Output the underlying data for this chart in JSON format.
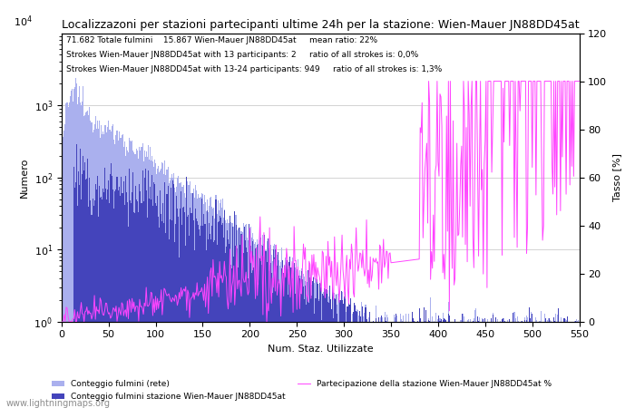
{
  "title": "Localizzazoni per stazioni partecipanti ultime 24h per la stazione: Wien-Mauer JN88DD45at",
  "ylabel_left": "Numero",
  "ylabel_right": "Tasso [%]",
  "xlabel": "Num. Staz. Utilizzate",
  "annotation_line1": "71.682 Totale fulmini    15.867 Wien-Mauer JN88DD45at     mean ratio: 22%",
  "annotation_line2": "Strokes Wien-Mauer JN88DD45at with 13 participants: 2     ratio of all strokes is: 0,0%",
  "annotation_line3": "Strokes Wien-Mauer JN88DD45at with 13-24 participants: 949     ratio of all strokes is: 1,3%",
  "watermark": "www.lightningmaps.org",
  "legend_label1": "Conteggio fulmini (rete)",
  "legend_label2": "Conteggio fulmini stazione Wien-Mauer JN88DD45at",
  "legend_label3": "Partecipazione della stazione Wien-Mauer JN88DD45at %",
  "color_net": "#aab0ee",
  "color_station": "#4444bb",
  "color_ratio": "#ff44ff",
  "xlim": [
    0,
    550
  ],
  "ylim_log": [
    1,
    10000
  ],
  "ylim_right": [
    0,
    120
  ],
  "n_stations": 550,
  "background_color": "#ffffff"
}
